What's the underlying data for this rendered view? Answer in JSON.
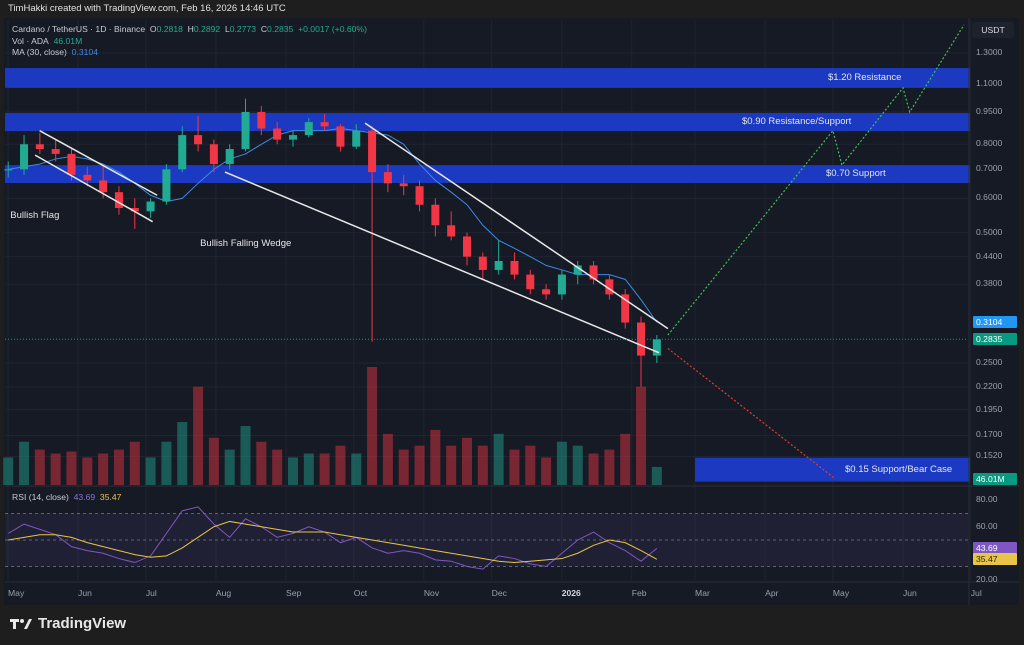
{
  "header": {
    "attribution": "TimHakki created with TradingView.com, Feb 16, 2026 14:46 UTC"
  },
  "legend": {
    "symbol": "Cardano / TetherUS · 1D · Binance",
    "o_label": "O",
    "o": "0.2818",
    "h_label": "H",
    "h": "0.2892",
    "l_label": "L",
    "l": "0.2773",
    "c_label": "C",
    "c": "0.2835",
    "change": "+0.0017 (+0.60%)",
    "vol_label": "Vol · ADA",
    "vol": "46.01M",
    "ma_label": "MA (30, close)",
    "ma": "0.3104"
  },
  "rsi_legend": {
    "label": "RSI (14, close)",
    "rsi": "43.69",
    "rsi_ma": "35.47"
  },
  "currency_button": "USDT",
  "logo": "TradingView",
  "colors": {
    "up": "#22ab94",
    "down": "#f23645",
    "ma": "#3d8be6",
    "band": "#1b3cc9",
    "rsi": "#7e57c2",
    "rsi_ma": "#e8c547",
    "projection_up": "#3fbf5a",
    "projection_down": "#e23b3b"
  },
  "chart_data": {
    "type": "candlestick",
    "title": "Cardano / TetherUS · 1D · Binance",
    "price_scale": "log",
    "ylim": [
      0.125,
      1.55
    ],
    "grid": true,
    "price_ticks": [
      "1.3000",
      "1.1000",
      "0.9500",
      "0.8000",
      "0.7000",
      "0.6000",
      "0.5000",
      "0.4400",
      "0.3800",
      "0.2500",
      "0.2200",
      "0.1950",
      "0.1700",
      "0.1520"
    ],
    "price_tags": [
      {
        "label": "0.3104",
        "value": 0.3104,
        "color": "#2196f3"
      },
      {
        "label": "0.2835",
        "value": 0.2835,
        "color": "#089981"
      }
    ],
    "volume_tag": "46.01M",
    "x_ticks": [
      {
        "label": "May",
        "date": "2025-05-01"
      },
      {
        "label": "Jun",
        "date": "2025-06-01"
      },
      {
        "label": "Jul",
        "date": "2025-07-01"
      },
      {
        "label": "Aug",
        "date": "2025-08-01"
      },
      {
        "label": "Sep",
        "date": "2025-09-01"
      },
      {
        "label": "Oct",
        "date": "2025-10-01"
      },
      {
        "label": "Nov",
        "date": "2025-11-01"
      },
      {
        "label": "Dec",
        "date": "2025-12-01"
      },
      {
        "label": "2026",
        "date": "2026-01-01"
      },
      {
        "label": "Feb",
        "date": "2026-02-01"
      },
      {
        "label": "Mar",
        "date": "2026-03-01"
      },
      {
        "label": "Apr",
        "date": "2026-04-01"
      },
      {
        "label": "May",
        "date": "2026-05-01"
      },
      {
        "label": "Jun",
        "date": "2026-06-01"
      },
      {
        "label": "Jul",
        "date": "2026-07-01"
      }
    ],
    "candles": [
      [
        "2025-04-28",
        0.7,
        0.73,
        0.67,
        0.7,
        70
      ],
      [
        "2025-05-05",
        0.7,
        0.84,
        0.68,
        0.8,
        110
      ],
      [
        "2025-05-12",
        0.8,
        0.85,
        0.76,
        0.78,
        90
      ],
      [
        "2025-05-19",
        0.78,
        0.82,
        0.73,
        0.76,
        80
      ],
      [
        "2025-05-26",
        0.76,
        0.78,
        0.66,
        0.68,
        85
      ],
      [
        "2025-06-02",
        0.68,
        0.71,
        0.64,
        0.66,
        70
      ],
      [
        "2025-06-09",
        0.66,
        0.72,
        0.6,
        0.62,
        80
      ],
      [
        "2025-06-16",
        0.62,
        0.64,
        0.55,
        0.57,
        90
      ],
      [
        "2025-06-23",
        0.57,
        0.6,
        0.51,
        0.56,
        110
      ],
      [
        "2025-06-30",
        0.56,
        0.6,
        0.54,
        0.59,
        70
      ],
      [
        "2025-07-07",
        0.59,
        0.72,
        0.58,
        0.7,
        110
      ],
      [
        "2025-07-14",
        0.7,
        0.88,
        0.69,
        0.84,
        160
      ],
      [
        "2025-07-21",
        0.84,
        0.93,
        0.77,
        0.8,
        250
      ],
      [
        "2025-07-28",
        0.8,
        0.82,
        0.69,
        0.72,
        120
      ],
      [
        "2025-08-04",
        0.72,
        0.8,
        0.7,
        0.78,
        90
      ],
      [
        "2025-08-11",
        0.78,
        1.02,
        0.77,
        0.95,
        150
      ],
      [
        "2025-08-18",
        0.95,
        0.98,
        0.84,
        0.87,
        110
      ],
      [
        "2025-08-25",
        0.87,
        0.9,
        0.8,
        0.82,
        90
      ],
      [
        "2025-09-01",
        0.82,
        0.86,
        0.79,
        0.84,
        70
      ],
      [
        "2025-09-08",
        0.84,
        0.92,
        0.83,
        0.9,
        80
      ],
      [
        "2025-09-15",
        0.9,
        0.94,
        0.86,
        0.88,
        80
      ],
      [
        "2025-09-22",
        0.88,
        0.89,
        0.77,
        0.79,
        100
      ],
      [
        "2025-09-29",
        0.79,
        0.89,
        0.78,
        0.86,
        80
      ],
      [
        "2025-10-06",
        0.86,
        0.88,
        0.28,
        0.69,
        300
      ],
      [
        "2025-10-13",
        0.69,
        0.72,
        0.62,
        0.65,
        130
      ],
      [
        "2025-10-20",
        0.65,
        0.68,
        0.61,
        0.64,
        90
      ],
      [
        "2025-10-27",
        0.64,
        0.66,
        0.56,
        0.58,
        100
      ],
      [
        "2025-11-03",
        0.58,
        0.6,
        0.49,
        0.52,
        140
      ],
      [
        "2025-11-10",
        0.52,
        0.56,
        0.48,
        0.49,
        100
      ],
      [
        "2025-11-17",
        0.49,
        0.5,
        0.42,
        0.44,
        120
      ],
      [
        "2025-11-24",
        0.44,
        0.45,
        0.39,
        0.41,
        100
      ],
      [
        "2025-12-01",
        0.41,
        0.48,
        0.4,
        0.43,
        130
      ],
      [
        "2025-12-08",
        0.43,
        0.45,
        0.39,
        0.4,
        90
      ],
      [
        "2025-12-15",
        0.4,
        0.41,
        0.36,
        0.37,
        100
      ],
      [
        "2025-12-22",
        0.37,
        0.38,
        0.35,
        0.36,
        70
      ],
      [
        "2025-12-29",
        0.36,
        0.41,
        0.35,
        0.4,
        110
      ],
      [
        "2026-01-05",
        0.4,
        0.43,
        0.38,
        0.42,
        100
      ],
      [
        "2026-01-12",
        0.42,
        0.43,
        0.38,
        0.39,
        80
      ],
      [
        "2026-01-19",
        0.39,
        0.4,
        0.35,
        0.36,
        90
      ],
      [
        "2026-01-26",
        0.36,
        0.37,
        0.3,
        0.31,
        130
      ],
      [
        "2026-02-02",
        0.31,
        0.32,
        0.22,
        0.26,
        250
      ],
      [
        "2026-02-09",
        0.26,
        0.29,
        0.25,
        0.2835,
        46.01
      ]
    ],
    "ma30": [
      0.7,
      0.71,
      0.72,
      0.74,
      0.75,
      0.74,
      0.72,
      0.69,
      0.65,
      0.61,
      0.59,
      0.6,
      0.65,
      0.7,
      0.74,
      0.76,
      0.8,
      0.84,
      0.86,
      0.86,
      0.86,
      0.87,
      0.86,
      0.85,
      0.84,
      0.8,
      0.72,
      0.66,
      0.62,
      0.58,
      0.52,
      0.48,
      0.46,
      0.44,
      0.42,
      0.41,
      0.4,
      0.4,
      0.4,
      0.39,
      0.35,
      0.3104
    ],
    "rsi": [
      55,
      62,
      58,
      54,
      45,
      42,
      40,
      36,
      33,
      38,
      55,
      72,
      75,
      62,
      52,
      66,
      60,
      52,
      55,
      60,
      56,
      48,
      52,
      44,
      40,
      42,
      40,
      35,
      34,
      30,
      28,
      38,
      36,
      32,
      30,
      40,
      50,
      56,
      48,
      42,
      34,
      43.69
    ],
    "rsi_ma": [
      50,
      52,
      54,
      54,
      52,
      48,
      45,
      42,
      39,
      37,
      38,
      44,
      52,
      60,
      64,
      62,
      60,
      58,
      56,
      56,
      56,
      54,
      52,
      50,
      48,
      46,
      44,
      42,
      40,
      38,
      36,
      34,
      33,
      34,
      35,
      36,
      40,
      46,
      50,
      48,
      42,
      35.47
    ],
    "rsi_ticks": [
      "80.00",
      "60.00",
      "20.00"
    ],
    "rsi_tags": [
      {
        "label": "43.69",
        "value": 43.69,
        "color": "#7e57c2"
      },
      {
        "label": "35.47",
        "value": 35.47,
        "color": "#e8c547"
      }
    ],
    "zones": [
      {
        "label": "$1.20 Resistance",
        "top": 1.2,
        "bottom": 1.08,
        "from": "2025-04-28"
      },
      {
        "label": "$0.90 Resistance/Support",
        "top": 0.945,
        "bottom": 0.858,
        "from": "2025-04-28"
      },
      {
        "label": "$0.70 Support",
        "top": 0.716,
        "bottom": 0.651,
        "from": "2025-04-28"
      },
      {
        "label": "$0.15 Support/Bear Case",
        "top": 0.151,
        "bottom": 0.133,
        "from": "2026-03-01"
      }
    ],
    "trendlines": [
      {
        "name": "flag-upper",
        "points": [
          [
            "2025-05-15",
            0.86
          ],
          [
            "2025-07-06",
            0.61
          ]
        ]
      },
      {
        "name": "flag-lower",
        "points": [
          [
            "2025-05-13",
            0.755
          ],
          [
            "2025-07-04",
            0.53
          ]
        ]
      },
      {
        "name": "wedge-upper",
        "points": [
          [
            "2025-10-06",
            0.895
          ],
          [
            "2026-02-17",
            0.3
          ]
        ]
      },
      {
        "name": "wedge-lower",
        "points": [
          [
            "2025-08-05",
            0.69
          ],
          [
            "2026-02-13",
            0.264
          ]
        ]
      }
    ],
    "projections": [
      {
        "name": "bull-path",
        "color": "#3fbf5a",
        "points": [
          [
            "2026-02-17",
            0.29
          ],
          [
            "2026-05-01",
            0.86
          ],
          [
            "2026-05-05",
            0.716
          ],
          [
            "2026-06-01",
            1.08
          ],
          [
            "2026-06-04",
            0.95
          ],
          [
            "2026-06-28",
            1.51
          ]
        ]
      },
      {
        "name": "bear-path",
        "color": "#e23b3b",
        "points": [
          [
            "2026-02-17",
            0.27
          ],
          [
            "2026-05-02",
            0.135
          ]
        ]
      }
    ],
    "labels": [
      {
        "text": "Bullish Flag",
        "date": "2025-05-02",
        "price": 0.565
      },
      {
        "text": "Bullish Falling Wedge",
        "date": "2025-07-25",
        "price": 0.485
      }
    ]
  }
}
